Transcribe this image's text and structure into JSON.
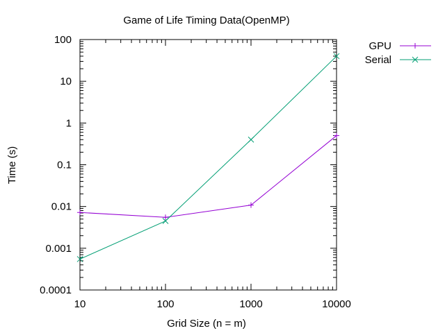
{
  "chart_data": {
    "type": "line",
    "title": "Game of Life Timing Data(OpenMP)",
    "xlabel": "Grid Size (n = m)",
    "ylabel": "Time (s)",
    "x_scale": "log",
    "y_scale": "log",
    "xlim": [
      10,
      10000
    ],
    "ylim": [
      0.0001,
      100
    ],
    "x_ticks": [
      10,
      100,
      1000,
      10000
    ],
    "x_tick_labels": [
      "10",
      "100",
      "1000",
      "10000"
    ],
    "y_ticks": [
      0.0001,
      0.001,
      0.01,
      0.1,
      1,
      10,
      100
    ],
    "y_tick_labels": [
      "0.0001",
      "0.001",
      "0.01",
      "0.1",
      "1",
      "10",
      "100"
    ],
    "grid": false,
    "legend_position": "top-right, outside plot",
    "series": [
      {
        "name": "GPU",
        "color": "#9400d3",
        "marker": "plus",
        "x": [
          10,
          100,
          1000,
          10000
        ],
        "y": [
          0.0072,
          0.0055,
          0.0108,
          0.5
        ]
      },
      {
        "name": "Serial",
        "color": "#009e73",
        "marker": "cross",
        "x": [
          10,
          100,
          1000,
          10000
        ],
        "y": [
          0.00055,
          0.0045,
          0.4,
          40
        ]
      }
    ]
  }
}
